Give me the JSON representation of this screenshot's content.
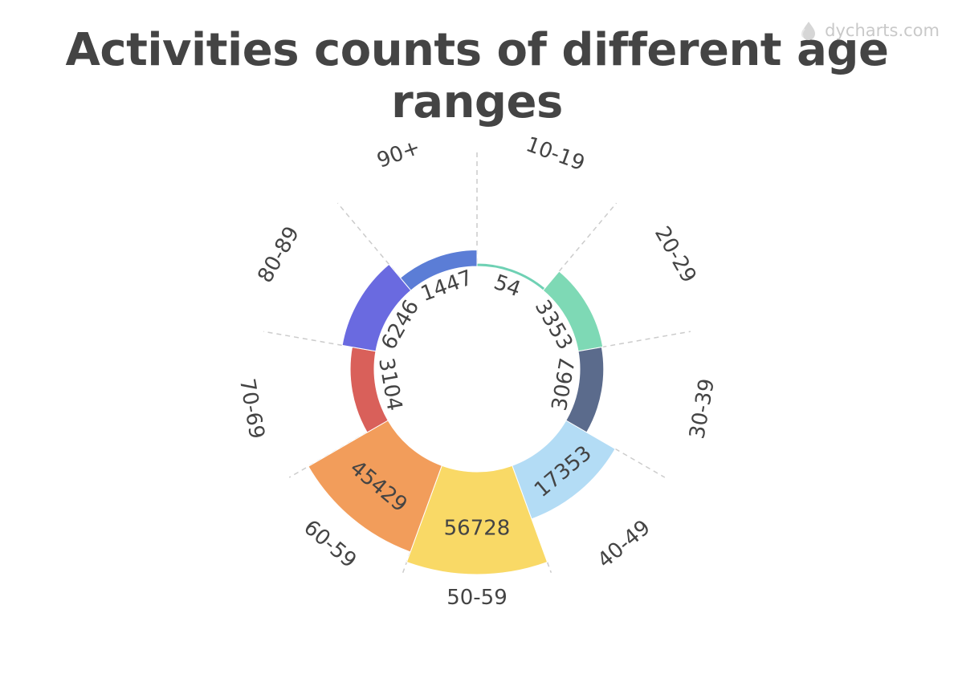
{
  "watermark": {
    "text": "dycharts.com",
    "icon": "drop-logo-icon"
  },
  "chart_data": {
    "type": "pie",
    "variant": "rose",
    "title": "Activities counts of different age ranges",
    "categories": [
      "10-19",
      "20-29",
      "30-39",
      "40-49",
      "50-59",
      "60-59",
      "70-69",
      "80-89",
      "90+"
    ],
    "values": [
      54,
      3353,
      3067,
      17353,
      56728,
      45429,
      3104,
      6246,
      1447
    ],
    "colors": [
      "#6fd1b4",
      "#7ed9b5",
      "#5b6b8c",
      "#b3dcf5",
      "#f9d966",
      "#f29d5b",
      "#d9605a",
      "#6a6ae0",
      "#5b7dd6"
    ],
    "legend": "none",
    "grid": false
  }
}
